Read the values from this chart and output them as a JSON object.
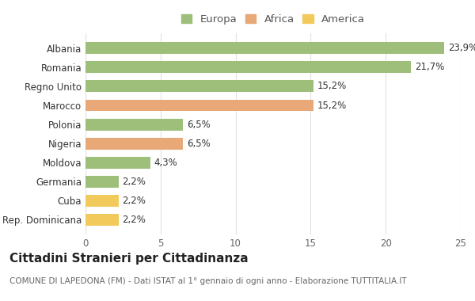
{
  "categories": [
    "Rep. Dominicana",
    "Cuba",
    "Germania",
    "Moldova",
    "Nigeria",
    "Polonia",
    "Marocco",
    "Regno Unito",
    "Romania",
    "Albania"
  ],
  "values": [
    2.2,
    2.2,
    2.2,
    4.3,
    6.5,
    6.5,
    15.2,
    15.2,
    21.7,
    23.9
  ],
  "labels": [
    "2,2%",
    "2,2%",
    "2,2%",
    "4,3%",
    "6,5%",
    "6,5%",
    "15,2%",
    "15,2%",
    "21,7%",
    "23,9%"
  ],
  "colors": [
    "#f2ca5c",
    "#f2ca5c",
    "#9dbf7a",
    "#9dbf7a",
    "#e8a878",
    "#9dbf7a",
    "#e8a878",
    "#9dbf7a",
    "#9dbf7a",
    "#9dbf7a"
  ],
  "legend": [
    {
      "label": "Europa",
      "color": "#9dbf7a"
    },
    {
      "label": "Africa",
      "color": "#e8a878"
    },
    {
      "label": "America",
      "color": "#f2ca5c"
    }
  ],
  "title": "Cittadini Stranieri per Cittadinanza",
  "subtitle": "COMUNE DI LAPEDONA (FM) - Dati ISTAT al 1° gennaio di ogni anno - Elaborazione TUTTITALIA.IT",
  "xlim": [
    0,
    25
  ],
  "xticks": [
    0,
    5,
    10,
    15,
    20,
    25
  ],
  "background_color": "#ffffff",
  "grid_color": "#e0e0e0",
  "bar_height": 0.62,
  "title_fontsize": 11,
  "subtitle_fontsize": 7.5,
  "label_fontsize": 8.5,
  "tick_fontsize": 8.5,
  "legend_fontsize": 9.5
}
